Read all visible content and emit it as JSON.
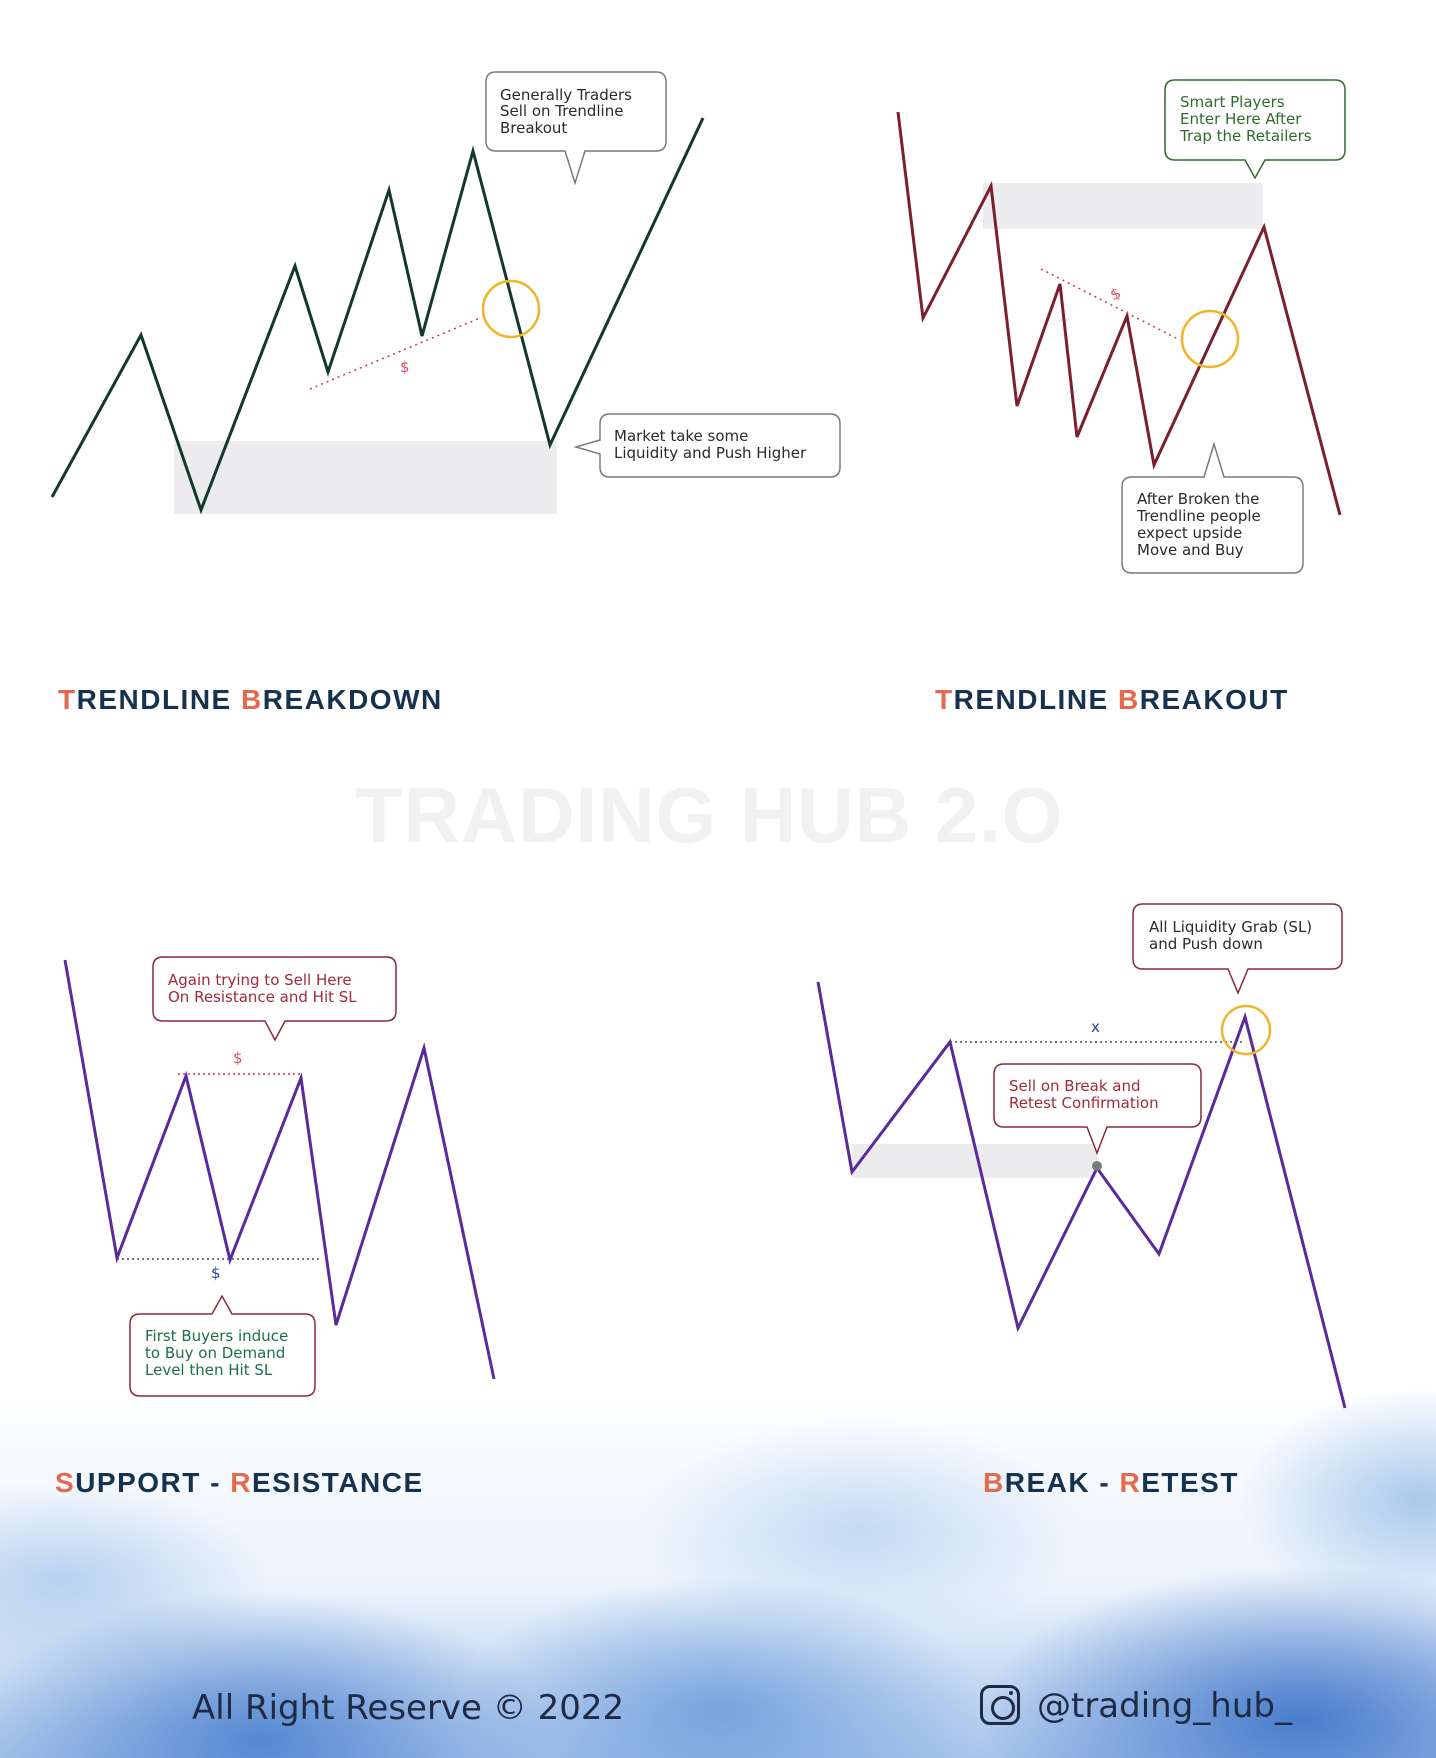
{
  "watermark": "TRADING HUB 2.O",
  "panels": {
    "breakdown": {
      "title_initial_1": "T",
      "title_rest_1": "RENDLINE ",
      "title_initial_2": "B",
      "title_rest_2": "REAKDOWN",
      "callout_top": [
        "Generally Traders",
        "Sell on  Trendline",
        "Breakout"
      ],
      "callout_right": [
        "Market take some",
        "Liquidity and Push Higher"
      ],
      "marker": "$"
    },
    "breakout": {
      "title_initial_1": "T",
      "title_rest_1": "RENDLINE ",
      "title_initial_2": "B",
      "title_rest_2": "REAKOUT",
      "callout_top": [
        "Smart Players",
        "Enter Here After",
        "Trap the Retailers"
      ],
      "callout_bottom": [
        "After Broken the",
        "Trendline people",
        "expect upside",
        "Move and Buy"
      ],
      "marker": "$"
    },
    "support_resistance": {
      "title_initial_1": "S",
      "title_rest_1": "UPPORT - ",
      "title_initial_2": "R",
      "title_rest_2": "ESISTANCE",
      "callout_top": [
        "Again trying to Sell Here",
        "On Resistance  and Hit SL"
      ],
      "callout_bottom": [
        "First Buyers induce",
        "to Buy on Demand",
        "Level  then Hit SL"
      ],
      "marker_top": "$",
      "marker_bottom": "$"
    },
    "break_retest": {
      "title_initial_1": "B",
      "title_rest_1": "REAK - ",
      "title_initial_2": "R",
      "title_rest_2": "ETEST",
      "callout_top": [
        "All Liquidity Grab (SL)",
        "and Push down"
      ],
      "callout_mid": [
        "Sell on Break and",
        "Retest Confirmation"
      ],
      "marker": "x"
    }
  },
  "footer": {
    "copyright": "All Right Reserve  © 2022",
    "handle": "@trading_hub_",
    "icon": "instagram-icon"
  },
  "colors": {
    "breakdown_line": "#12382c",
    "breakout_line": "#7a1f2c",
    "purple_line": "#5a2a9a",
    "highlight_circle": "#f0b429",
    "zone": "#ececee",
    "title": "#16324f",
    "accent": "#e46a4b"
  }
}
